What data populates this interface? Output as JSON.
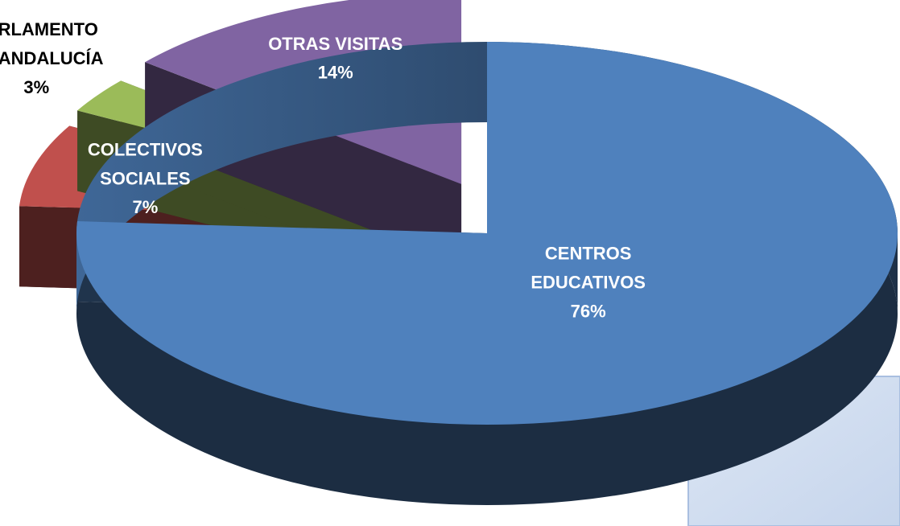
{
  "chart_data": {
    "type": "pie",
    "three_d": true,
    "categories": [
      "CENTROS\nEDUCATIVOS",
      "COLECTIVOS\nSOCIALES",
      "PARLAMENTO\nDE ANDALUCÍA",
      "OTRAS VISITAS"
    ],
    "values": [
      76,
      7,
      3,
      14
    ],
    "value_labels": [
      "76%",
      "7%",
      "3%",
      "14%"
    ],
    "colors": [
      "#4f81bd",
      "#c0504d",
      "#9bbb59",
      "#8064a2"
    ]
  }
}
